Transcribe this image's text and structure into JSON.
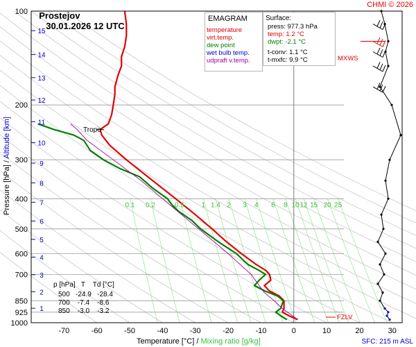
{
  "header": {
    "station": "Prostejov",
    "datetime": "30.01.2026 12 UTC",
    "copyright": "CHMI © 2026"
  },
  "legend": {
    "title": "EMAGRAM",
    "items": [
      {
        "label": "temperature",
        "color": "#e00000"
      },
      {
        "label": "virt.temp.",
        "color": "#e00000"
      },
      {
        "label": "dew point",
        "color": "#008000"
      },
      {
        "label": "wet bulb temp.",
        "color": "#0000c8"
      },
      {
        "label": "udpraft v.temp.",
        "color": "#a000a0"
      }
    ]
  },
  "surface_box": {
    "title": "Surface:",
    "press": "press: 977.3 hPa",
    "temp": "temp: 1.2 °C",
    "dwpt": "dwpt: -2.1 °C",
    "tconv": "t-conv: 1.1 °C",
    "tmxfc": "t-mxfc: 9.9 °C"
  },
  "level_table": {
    "header": "p [hPa]   T    Td [°C]",
    "rows": [
      "500   -24.9   -28.4",
      "700    -7.4    -8.6",
      "850    -3.0    -3.2"
    ]
  },
  "labels": {
    "tropo": "Tropo",
    "mxws": "MXWS",
    "fzlv": "FZLV",
    "sfc": "SFC: 215 m ASL",
    "ylabel_pressure": "Pressure [hPa]",
    "ylabel_sep": " / ",
    "ylabel_altitude": "Altitude [km]",
    "xlabel_temp": "Temperature [°C]",
    "xlabel_sep": " / ",
    "xlabel_mix": "Mixing ratio [g/kg]"
  },
  "chart_data": {
    "type": "line",
    "title": "Prostejov 30.01.2026 12 UTC",
    "xlabel": "Temperature [°C]",
    "ylabel": "Pressure [hPa]",
    "xlim": [
      -80,
      33
    ],
    "ylim": [
      1000,
      100
    ],
    "pressure_ticks": [
      100,
      200,
      300,
      400,
      500,
      600,
      700,
      850,
      925,
      1000
    ],
    "pressure_tick_labels": [
      "100",
      "200",
      "300",
      "400",
      "500",
      "600",
      "700",
      "850",
      "925",
      "1000"
    ],
    "temp_ticks": [
      -70,
      -60,
      -50,
      -40,
      -30,
      -20,
      -10,
      0,
      10,
      20,
      30
    ],
    "temp_tick_labels": [
      "-70",
      "-60",
      "-50",
      "-40",
      "-30",
      "-20",
      "-10",
      "0",
      "10",
      "20",
      "30"
    ],
    "altitude_ticks_km": [
      1,
      2,
      3,
      4,
      5,
      6,
      7,
      8,
      9,
      10,
      11,
      12,
      13,
      14,
      15
    ],
    "altitude_tick_labels": [
      "1",
      "2",
      "3",
      "4",
      "5",
      "6",
      "7",
      "8",
      "9",
      "10",
      "11",
      "12",
      "13",
      "14",
      "15"
    ],
    "mixing_ratio_labels": [
      "0.1",
      "0.2",
      "0.5",
      "1",
      "1.4",
      "2",
      "3",
      "4",
      "6",
      "8",
      "10",
      "12",
      "15",
      "20",
      "25"
    ],
    "series": [
      {
        "name": "temperature",
        "color": "#e00000",
        "points": [
          [
            977,
            1.2
          ],
          [
            950,
            -1.5
          ],
          [
            925,
            -3.5
          ],
          [
            900,
            -3.0
          ],
          [
            850,
            -3.0
          ],
          [
            820,
            -4.5
          ],
          [
            790,
            -7.5
          ],
          [
            760,
            -9.0
          ],
          [
            730,
            -7.0
          ],
          [
            700,
            -7.4
          ],
          [
            680,
            -8.5
          ],
          [
            650,
            -11.5
          ],
          [
            600,
            -16.0
          ],
          [
            550,
            -20.5
          ],
          [
            500,
            -24.9
          ],
          [
            450,
            -30.0
          ],
          [
            400,
            -36.0
          ],
          [
            350,
            -43.0
          ],
          [
            300,
            -51.0
          ],
          [
            270,
            -56.0
          ],
          [
            250,
            -58.5
          ],
          [
            240,
            -59.0
          ],
          [
            230,
            -56.5
          ],
          [
            215,
            -55.5
          ],
          [
            200,
            -55.0
          ],
          [
            185,
            -54.5
          ],
          [
            175,
            -54.5
          ],
          [
            160,
            -53.5
          ],
          [
            150,
            -52.5
          ],
          [
            140,
            -52.5
          ],
          [
            130,
            -51.5
          ],
          [
            120,
            -51.0
          ],
          [
            110,
            -51.0
          ],
          [
            100,
            -51.5
          ]
        ]
      },
      {
        "name": "dew point",
        "color": "#008000",
        "points": [
          [
            977,
            -2.1
          ],
          [
            950,
            -4.0
          ],
          [
            925,
            -5.5
          ],
          [
            900,
            -4.0
          ],
          [
            850,
            -3.2
          ],
          [
            820,
            -5.0
          ],
          [
            790,
            -9.0
          ],
          [
            760,
            -12.0
          ],
          [
            730,
            -10.5
          ],
          [
            700,
            -8.6
          ],
          [
            680,
            -10.5
          ],
          [
            650,
            -14.0
          ],
          [
            600,
            -17.5
          ],
          [
            550,
            -23.0
          ],
          [
            500,
            -28.4
          ],
          [
            470,
            -31.0
          ],
          [
            440,
            -35.0
          ],
          [
            420,
            -37.0
          ],
          [
            400,
            -38.5
          ],
          [
            370,
            -43.0
          ],
          [
            340,
            -47.0
          ],
          [
            320,
            -53.0
          ],
          [
            300,
            -58.0
          ],
          [
            280,
            -62.0
          ],
          [
            260,
            -64.0
          ],
          [
            250,
            -67.0
          ],
          [
            240,
            -73.0
          ],
          [
            230,
            -78.0
          ]
        ]
      },
      {
        "name": "udpraft v.temp.",
        "color": "#a000a0",
        "points": [
          [
            977,
            1.2
          ],
          [
            900,
            -3.5
          ],
          [
            850,
            -6.0
          ],
          [
            800,
            -9.0
          ],
          [
            700,
            -13.0
          ],
          [
            600,
            -20.0
          ],
          [
            500,
            -29.0
          ],
          [
            400,
            -40.0
          ],
          [
            350,
            -46.5
          ],
          [
            300,
            -55.0
          ],
          [
            260,
            -63.0
          ],
          [
            240,
            -66.0
          ],
          [
            230,
            -68.0
          ]
        ]
      }
    ],
    "wind_profile": {
      "pressure_levels": [
        977,
        950,
        925,
        900,
        850,
        800,
        750,
        700,
        650,
        600,
        550,
        500,
        450,
        400,
        350,
        300,
        250,
        200,
        175,
        150,
        135,
        125,
        110,
        100
      ]
    }
  }
}
